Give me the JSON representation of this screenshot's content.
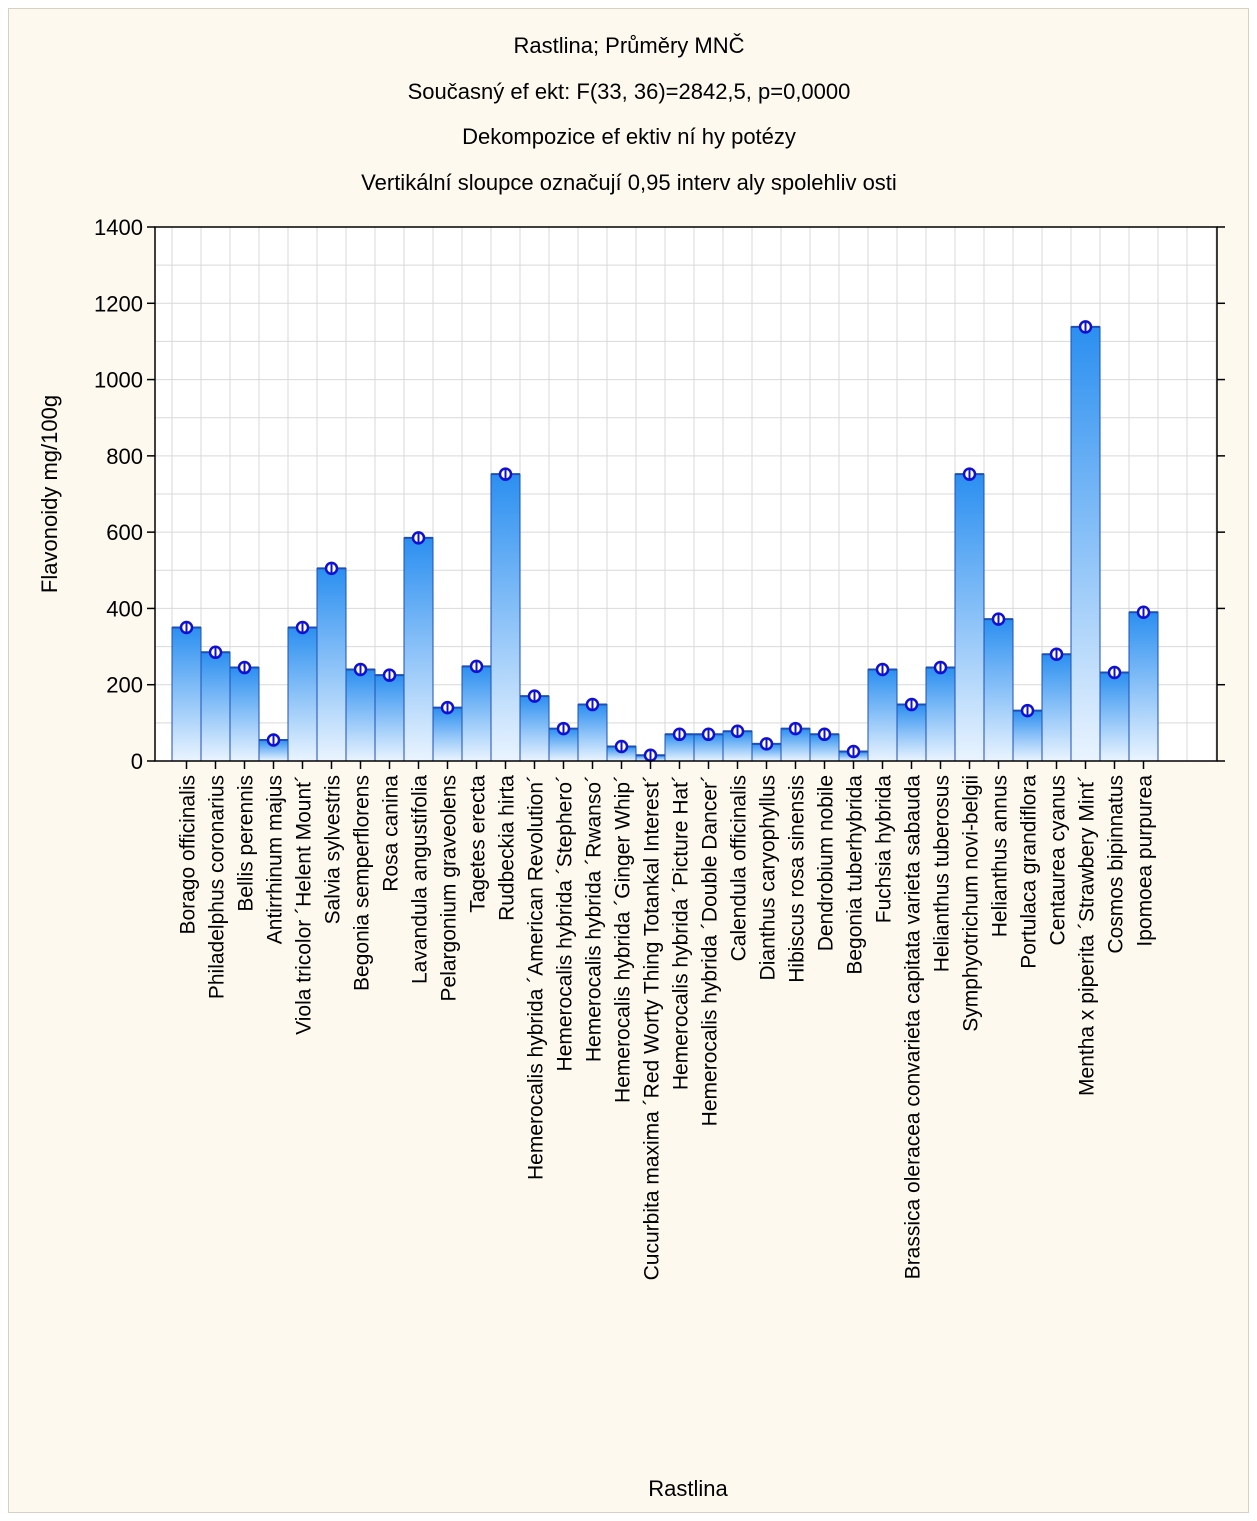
{
  "chart_data": {
    "type": "bar",
    "title": [
      "Rastlina; Průměry MNČ",
      "Současný ef ekt: F(33, 36)=2842,5, p=0,0000",
      "Dekompozice ef ektiv ní hy potézy",
      "Vertikální sloupce označují 0,95 interv aly spolehliv osti"
    ],
    "xlabel": "Rastlina",
    "ylabel": "Flavonoidy  mg/100g",
    "ylim": [
      0,
      1400
    ],
    "yticks": [
      "0",
      "200",
      "400",
      "600",
      "800",
      "1000",
      "1200",
      "1400"
    ],
    "grid": true,
    "categories": [
      "Borago officinalis",
      "Philadelphus coronarius",
      "Bellis perennis",
      "Antirrhinum majus",
      "Viola tricolor ´Helent Mount´",
      "Salvia sylvestris",
      "Begonia semperflorens",
      "Rosa canina",
      "Lavandula angustifolia",
      "Pelargonium graveolens",
      "Tagetes erecta",
      "Rudbeckia hirta",
      "Hemerocalis hybrida ´American Revolution´",
      "Hemerocalis hybrida ´Stephero´",
      "Hemerocalis hybrida ´Rwanso´",
      "Hemerocalis hybrida ´Ginger Whip´",
      "Cucurbita maxima ´Red Worty Thing Totankal Interest´",
      "Hemerocalis hybrida ´Picture Hat´",
      "Hemerocalis hybrida ´Double Dancer´",
      "Calendula officinalis",
      "Dianthus caryophyllus",
      "Hibiscus rosa sinensis",
      "Dendrobium nobile",
      "Begonia tuberhybrida",
      "Fuchsia hybrida",
      "Brassica oleracea convarieta capitata  varieta sabauda",
      "Helianthus tuberosus",
      "Symphyotrichum novi-belgii",
      "Helianthus annus",
      "Portulaca grandiflora",
      "Centaurea cyanus",
      "Mentha x piperita ´Strawbery Mint´",
      "Cosmos bipinnatus",
      "Ipomoea purpurea"
    ],
    "values": [
      350,
      285,
      245,
      55,
      350,
      505,
      240,
      225,
      585,
      140,
      248,
      752,
      170,
      85,
      148,
      38,
      15,
      70,
      70,
      78,
      45,
      85,
      70,
      25,
      240,
      148,
      245,
      752,
      372,
      132,
      280,
      1138,
      232,
      390
    ],
    "colors": {
      "bar_top": "#2b8ff0",
      "bar_bottom": "#eaf4ff",
      "bar_edge": "#1e4fb5",
      "marker": "#1010d0",
      "grid": "#d9d9d9",
      "background": "#fdf9ef",
      "plot_background": "#ffffff"
    }
  }
}
